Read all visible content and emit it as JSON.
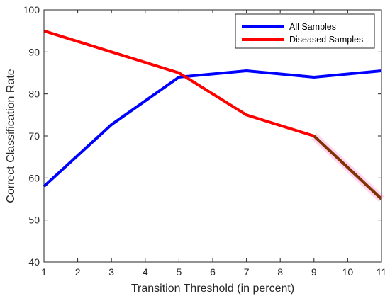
{
  "chart_data": {
    "type": "line",
    "xlabel": "Transition Threshold (in percent)",
    "ylabel": "Correct Classification Rate",
    "xlim": [
      1,
      11
    ],
    "ylim": [
      40,
      100
    ],
    "xticks": [
      "1",
      "2",
      "3",
      "4",
      "5",
      "6",
      "7",
      "8",
      "9",
      "10",
      "11"
    ],
    "yticks": [
      "40",
      "50",
      "60",
      "70",
      "80",
      "90",
      "100"
    ],
    "grid": false,
    "legend_position": "top-right",
    "series": [
      {
        "name": "All Samples",
        "color": "#0000ff",
        "x": [
          1,
          3,
          5,
          7,
          9,
          11
        ],
        "y": [
          58,
          72.7,
          84,
          85.5,
          84,
          85.5
        ]
      },
      {
        "name": "Diseased Samples",
        "color": "#ff0000",
        "x": [
          1,
          3,
          5,
          7,
          9,
          11
        ],
        "y": [
          95,
          90,
          85,
          75,
          70,
          55
        ]
      }
    ],
    "highlight_segment": {
      "x": [
        9,
        11
      ],
      "y": [
        70,
        55
      ],
      "color": "#7f3300"
    }
  }
}
